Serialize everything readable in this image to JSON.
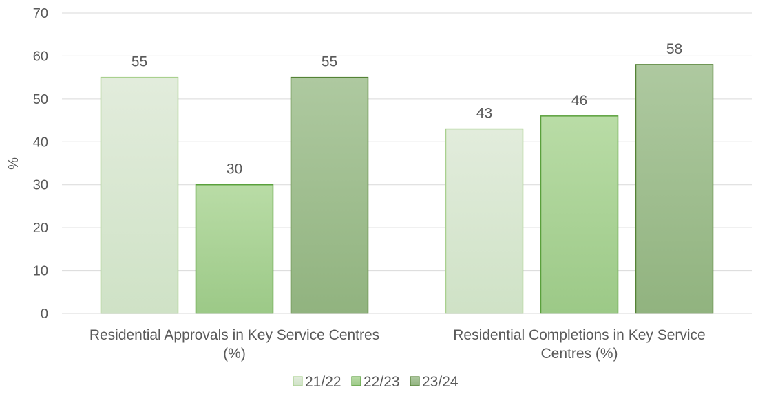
{
  "chart_data": {
    "type": "bar",
    "categories": [
      [
        "Residential Approvals in Key Service Centres",
        "(%)"
      ],
      [
        "Residential Completions in Key Service",
        "Centres (%)"
      ]
    ],
    "series": [
      {
        "name": "21/22",
        "values": [
          55,
          43
        ],
        "color_top": "#e2ecdc",
        "color_bottom": "#cfe2c6",
        "stroke": "#a9d08e"
      },
      {
        "name": "22/23",
        "values": [
          30,
          46
        ],
        "color_top": "#b9dca6",
        "color_bottom": "#9cc987",
        "stroke": "#5aa03c"
      },
      {
        "name": "23/24",
        "values": [
          55,
          58
        ],
        "color_top": "#aec9a0",
        "color_bottom": "#91b37f",
        "stroke": "#548235"
      }
    ],
    "ylabel": "%",
    "ylim": [
      0,
      70
    ],
    "yticks": [
      0,
      10,
      20,
      30,
      40,
      50,
      60,
      70
    ],
    "grid": true,
    "legend_position": "bottom",
    "show_data_labels": true
  }
}
